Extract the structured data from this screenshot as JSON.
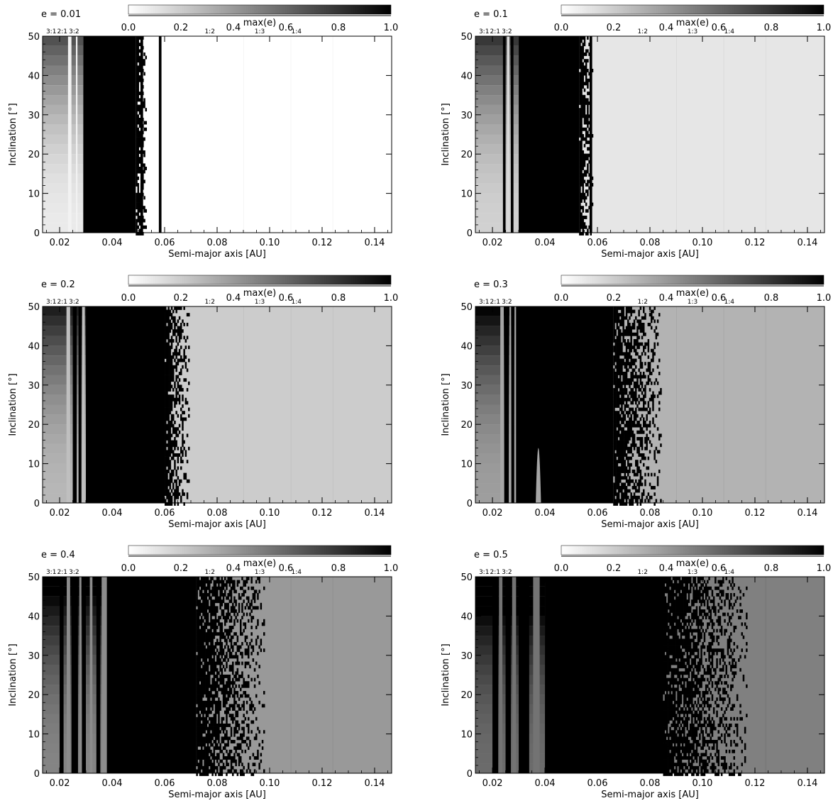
{
  "figure": {
    "panels": [
      {
        "id": "p1",
        "e_label": "e = 0.01",
        "ecc": 0.01,
        "bg": 0.0,
        "stable_start": 0.06,
        "chaos_lo": 0.029,
        "chaos_hi": 0.049,
        "fuzzy_hi": 0.053,
        "dark_strips": [
          [
            0.0508,
            0.0518
          ],
          [
            0.0578,
            0.0588
          ]
        ],
        "light_strips": [
          [
            0.0232,
            0.0245
          ],
          [
            0.0262,
            0.0268
          ]
        ]
      },
      {
        "id": "p2",
        "e_label": "e = 0.1",
        "ecc": 0.1,
        "bg": 0.1,
        "stable_start": 0.062,
        "chaos_lo": 0.03,
        "chaos_hi": 0.053,
        "fuzzy_hi": 0.058,
        "dark_strips": [
          [
            0.024,
            0.025
          ],
          [
            0.027,
            0.028
          ],
          [
            0.057,
            0.058
          ]
        ],
        "light_strips": [
          [
            0.0255,
            0.0265
          ]
        ]
      },
      {
        "id": "p3",
        "e_label": "e = 0.2",
        "ecc": 0.2,
        "bg": 0.2,
        "stable_start": 0.072,
        "chaos_lo": 0.03,
        "chaos_hi": 0.06,
        "fuzzy_hi": 0.069,
        "dark_strips": [
          [
            0.025,
            0.0265
          ],
          [
            0.0272,
            0.0283
          ]
        ],
        "light_strips": [
          [
            0.0226,
            0.024
          ],
          [
            0.0286,
            0.0296
          ]
        ]
      },
      {
        "id": "p4",
        "e_label": "e = 0.3",
        "ecc": 0.3,
        "bg": 0.3,
        "stable_start": 0.085,
        "chaos_lo": 0.029,
        "chaos_hi": 0.066,
        "fuzzy_hi": 0.084,
        "dark_strips": [
          [
            0.0245,
            0.0262
          ],
          [
            0.0272,
            0.0283
          ]
        ],
        "light_strips": [
          [
            0.023,
            0.0243
          ],
          [
            0.0265,
            0.0271
          ],
          [
            0.0284,
            0.0292
          ]
        ]
      },
      {
        "id": "p5",
        "e_label": "e = 0.4",
        "ecc": 0.4,
        "bg": 0.4,
        "stable_start": 0.1,
        "chaos_lo": 0.038,
        "chaos_hi": 0.072,
        "fuzzy_hi": 0.098,
        "dark_strips": [
          [
            0.02,
            0.0215
          ],
          [
            0.0245,
            0.027
          ],
          [
            0.0285,
            0.03
          ],
          [
            0.034,
            0.0355
          ]
        ],
        "light_strips": [
          [
            0.0227,
            0.024
          ],
          [
            0.0275,
            0.0283
          ],
          [
            0.0315,
            0.0325
          ],
          [
            0.036,
            0.038
          ]
        ]
      },
      {
        "id": "p6",
        "e_label": "e = 0.5",
        "ecc": 0.5,
        "bg": 0.5,
        "stable_start": 0.118,
        "chaos_lo": 0.04,
        "chaos_hi": 0.085,
        "fuzzy_hi": 0.117,
        "dark_strips": [
          [
            0.02,
            0.0222
          ],
          [
            0.025,
            0.027
          ],
          [
            0.03,
            0.034
          ]
        ],
        "light_strips": [
          [
            0.0225,
            0.0238
          ],
          [
            0.0275,
            0.029
          ],
          [
            0.0355,
            0.038
          ]
        ]
      }
    ],
    "colorbar": {
      "label": "max(e)",
      "tick_labels": [
        "0.0",
        "0.2",
        "0.4",
        "0.6",
        "0.8",
        "1.0"
      ],
      "tick_values": [
        0.0,
        0.2,
        0.4,
        0.6,
        0.8,
        1.0
      ]
    },
    "resonances": {
      "top_labels": [
        "3:1",
        "2:1",
        "3:2"
      ],
      "top_positions": [
        0.0168,
        0.021,
        0.0255
      ],
      "colorbar_row_labels": [
        "1:2",
        "1:3",
        "1:4"
      ],
      "colorbar_row_positions": [
        0.31,
        0.5,
        0.64
      ]
    },
    "x_axis": {
      "label": "Semi-major axis [AU]",
      "tick_labels": [
        "0.02",
        "0.04",
        "0.06",
        "0.08",
        "0.10",
        "0.12",
        "0.14"
      ],
      "tick_values": [
        0.02,
        0.04,
        0.06,
        0.08,
        0.1,
        0.12,
        0.14
      ],
      "range": [
        0.0135,
        0.1465
      ]
    },
    "y_axis": {
      "label": "Inclination [°]",
      "tick_labels": [
        "0",
        "10",
        "20",
        "30",
        "40",
        "50"
      ],
      "tick_values": [
        0,
        10,
        20,
        30,
        40,
        50
      ],
      "range": [
        0,
        50
      ]
    }
  },
  "chart_data": [
    {
      "type": "heatmap",
      "title": "e = 0.01",
      "xlabel": "Semi-major axis [AU]",
      "ylabel": "Inclination [°]",
      "xlim": [
        0.0135,
        0.1465
      ],
      "ylim": [
        0,
        50
      ],
      "colorbar_label": "max(e)",
      "zlim": [
        0,
        1
      ],
      "chaotic_region_AU": [
        0.029,
        0.053
      ],
      "stable_region_from_AU": 0.06,
      "stable_max_e": 0.0
    },
    {
      "type": "heatmap",
      "title": "e = 0.1",
      "xlabel": "Semi-major axis [AU]",
      "ylabel": "Inclination [°]",
      "xlim": [
        0.0135,
        0.1465
      ],
      "ylim": [
        0,
        50
      ],
      "colorbar_label": "max(e)",
      "zlim": [
        0,
        1
      ],
      "chaotic_region_AU": [
        0.03,
        0.058
      ],
      "stable_region_from_AU": 0.062,
      "stable_max_e": 0.1
    },
    {
      "type": "heatmap",
      "title": "e = 0.2",
      "xlabel": "Semi-major axis [AU]",
      "ylabel": "Inclination [°]",
      "xlim": [
        0.0135,
        0.1465
      ],
      "ylim": [
        0,
        50
      ],
      "colorbar_label": "max(e)",
      "zlim": [
        0,
        1
      ],
      "chaotic_region_AU": [
        0.03,
        0.069
      ],
      "stable_region_from_AU": 0.072,
      "stable_max_e": 0.2
    },
    {
      "type": "heatmap",
      "title": "e = 0.3",
      "xlabel": "Semi-major axis [AU]",
      "ylabel": "Inclination [°]",
      "xlim": [
        0.0135,
        0.1465
      ],
      "ylim": [
        0,
        50
      ],
      "colorbar_label": "max(e)",
      "zlim": [
        0,
        1
      ],
      "chaotic_region_AU": [
        0.029,
        0.084
      ],
      "stable_region_from_AU": 0.085,
      "stable_max_e": 0.3
    },
    {
      "type": "heatmap",
      "title": "e = 0.4",
      "xlabel": "Semi-major axis [AU]",
      "ylabel": "Inclination [°]",
      "xlim": [
        0.0135,
        0.1465
      ],
      "ylim": [
        0,
        50
      ],
      "colorbar_label": "max(e)",
      "zlim": [
        0,
        1
      ],
      "chaotic_region_AU": [
        0.038,
        0.098
      ],
      "stable_region_from_AU": 0.1,
      "stable_max_e": 0.4
    },
    {
      "type": "heatmap",
      "title": "e = 0.5",
      "xlabel": "Semi-major axis [AU]",
      "ylabel": "Inclination [°]",
      "xlim": [
        0.0135,
        0.1465
      ],
      "ylim": [
        0,
        50
      ],
      "colorbar_label": "max(e)",
      "zlim": [
        0,
        1
      ],
      "chaotic_region_AU": [
        0.04,
        0.117
      ],
      "stable_region_from_AU": 0.118,
      "stable_max_e": 0.5
    }
  ]
}
